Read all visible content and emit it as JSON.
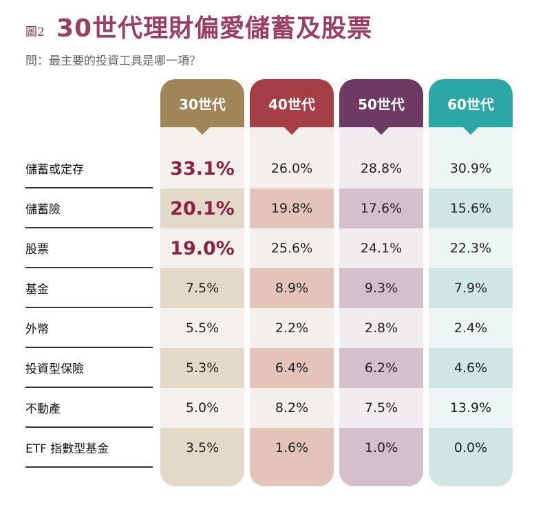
{
  "figure_label": "圖2",
  "title": "30世代理財偏愛儲蓄及股票",
  "subtitle": "問：最主要的投資工具是哪一項？",
  "chart_data": {
    "type": "table",
    "title": "30世代理財偏愛儲蓄及股票",
    "columns": [
      {
        "label": "30世代",
        "color": "#a08558",
        "light": "#f4f0ec",
        "dark": "#e2d9c8"
      },
      {
        "label": "40世代",
        "color": "#a53f45",
        "light": "#f5efec",
        "dark": "#e4c4ba"
      },
      {
        "label": "50世代",
        "color": "#6e3a63",
        "light": "#f0ecf0",
        "dark": "#d4c0cc"
      },
      {
        "label": "60世代",
        "color": "#2ba7a6",
        "light": "#eef5f5",
        "dark": "#d0e6e3"
      }
    ],
    "rows": [
      {
        "label": "儲蓄或定存",
        "values": [
          "33.1%",
          "26.0%",
          "28.8%",
          "30.9%"
        ],
        "highlight": [
          true,
          false,
          false,
          false
        ]
      },
      {
        "label": "儲蓄險",
        "values": [
          "20.1%",
          "19.8%",
          "17.6%",
          "15.6%"
        ],
        "highlight": [
          true,
          false,
          false,
          false
        ]
      },
      {
        "label": "股票",
        "values": [
          "19.0%",
          "25.6%",
          "24.1%",
          "22.3%"
        ],
        "highlight": [
          true,
          false,
          false,
          false
        ]
      },
      {
        "label": "基金",
        "values": [
          "7.5%",
          "8.9%",
          "9.3%",
          "7.9%"
        ]
      },
      {
        "label": "外幣",
        "values": [
          "5.5%",
          "2.2%",
          "2.8%",
          "2.4%"
        ]
      },
      {
        "label": "投資型保險",
        "values": [
          "5.3%",
          "6.4%",
          "6.2%",
          "4.6%"
        ]
      },
      {
        "label": "不動產",
        "values": [
          "5.0%",
          "8.2%",
          "7.5%",
          "13.9%"
        ]
      },
      {
        "label": "ETF 指數型基金",
        "values": [
          "3.5%",
          "1.6%",
          "1.0%",
          "0.0%"
        ]
      }
    ],
    "highlight_color": "#8b2346"
  }
}
